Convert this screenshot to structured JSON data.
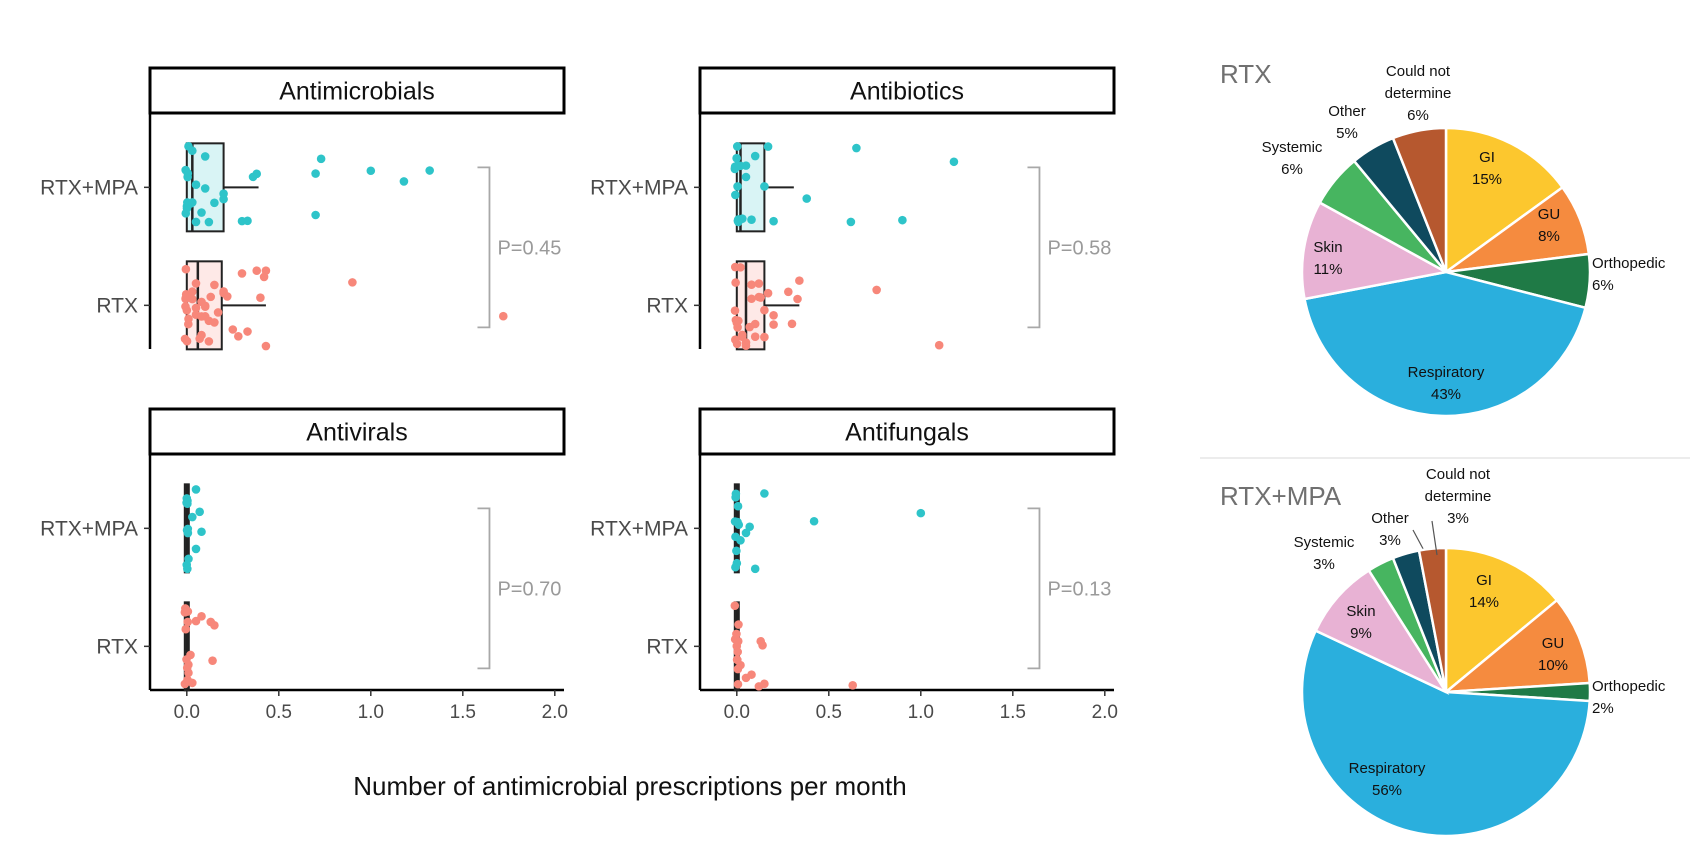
{
  "chart_data": [
    {
      "type": "scatter",
      "subtype": "jittered-boxplot",
      "xlabel": "Number of antimicrobial prescriptions per month",
      "x_ticks": [
        "0.0",
        "0.5",
        "1.0",
        "1.5",
        "2.0"
      ],
      "xlim": [
        -0.2,
        2.05
      ],
      "groups": [
        "RTX+MPA",
        "RTX"
      ],
      "colors": {
        "RTX+MPA": "#2ec4c9",
        "RTX": "#f7877a"
      },
      "panels": [
        {
          "title": "Antimicrobials",
          "p_value": "P=0.45",
          "series": [
            {
              "name": "RTX+MPA",
              "box": {
                "q1": 0.0,
                "median": 0.03,
                "q3": 0.2,
                "whisker_low": 0.0,
                "whisker_high": 0.39
              },
              "points": [
                0,
                0,
                0,
                0,
                0,
                0,
                0,
                0,
                0.02,
                0.03,
                0.03,
                0.05,
                0.05,
                0.08,
                0.1,
                0.1,
                0.12,
                0.15,
                0.2,
                0.2,
                0.3,
                0.33,
                0.36,
                0.38,
                0.7,
                0.7,
                0.73,
                1.0,
                1.18,
                1.32
              ]
            },
            {
              "name": "RTX",
              "box": {
                "q1": 0.0,
                "median": 0.06,
                "q3": 0.19,
                "whisker_low": 0.0,
                "whisker_high": 0.43
              },
              "points": [
                0,
                0,
                0,
                0,
                0,
                0,
                0,
                0,
                0,
                0,
                0.02,
                0.03,
                0.03,
                0.05,
                0.05,
                0.05,
                0.07,
                0.08,
                0.08,
                0.08,
                0.1,
                0.1,
                0.1,
                0.12,
                0.12,
                0.13,
                0.15,
                0.15,
                0.17,
                0.2,
                0.2,
                0.22,
                0.25,
                0.28,
                0.3,
                0.33,
                0.38,
                0.4,
                0.42,
                0.43,
                0.43,
                0.9,
                1.72
              ]
            }
          ]
        },
        {
          "title": "Antibiotics",
          "p_value": "P=0.58",
          "series": [
            {
              "name": "RTX+MPA",
              "box": {
                "q1": 0.0,
                "median": 0.02,
                "q3": 0.15,
                "whisker_low": 0.0,
                "whisker_high": 0.31
              },
              "points": [
                0,
                0,
                0,
                0,
                0,
                0,
                0,
                0,
                0,
                0,
                0.02,
                0.03,
                0.05,
                0.05,
                0.08,
                0.1,
                0.15,
                0.17,
                0.2,
                0.38,
                0.62,
                0.65,
                0.9,
                1.18
              ]
            },
            {
              "name": "RTX",
              "box": {
                "q1": 0.0,
                "median": 0.05,
                "q3": 0.15,
                "whisker_low": 0.0,
                "whisker_high": 0.34
              },
              "points": [
                0,
                0,
                0,
                0,
                0,
                0,
                0,
                0,
                0,
                0.02,
                0.03,
                0.03,
                0.05,
                0.05,
                0.07,
                0.08,
                0.08,
                0.1,
                0.1,
                0.12,
                0.12,
                0.13,
                0.15,
                0.15,
                0.17,
                0.2,
                0.2,
                0.28,
                0.3,
                0.33,
                0.34,
                0.76,
                1.1
              ]
            }
          ]
        },
        {
          "title": "Antivirals",
          "p_value": "P=0.70",
          "series": [
            {
              "name": "RTX+MPA",
              "box": {
                "q1": 0.0,
                "median": 0.0,
                "q3": 0.0,
                "whisker_low": 0.0,
                "whisker_high": 0.0
              },
              "points": [
                0,
                0,
                0,
                0,
                0,
                0,
                0,
                0,
                0,
                0,
                0.03,
                0.05,
                0.05,
                0.07,
                0.08
              ]
            },
            {
              "name": "RTX",
              "box": {
                "q1": 0.0,
                "median": 0.0,
                "q3": 0.0,
                "whisker_low": 0.0,
                "whisker_high": 0.0
              },
              "points": [
                0,
                0,
                0,
                0,
                0,
                0,
                0,
                0,
                0,
                0,
                0,
                0,
                0.02,
                0.03,
                0.05,
                0.08,
                0.13,
                0.14,
                0.15
              ]
            }
          ]
        },
        {
          "title": "Antifungals",
          "p_value": "P=0.13",
          "series": [
            {
              "name": "RTX+MPA",
              "box": {
                "q1": 0.0,
                "median": 0.0,
                "q3": 0.0,
                "whisker_low": 0.0,
                "whisker_high": 0.0
              },
              "points": [
                0,
                0,
                0,
                0,
                0,
                0,
                0,
                0,
                0,
                0,
                0.02,
                0.05,
                0.07,
                0.1,
                0.15,
                0.42,
                1.0
              ]
            },
            {
              "name": "RTX",
              "box": {
                "q1": 0.0,
                "median": 0.0,
                "q3": 0.0,
                "whisker_low": 0.0,
                "whisker_high": 0.0
              },
              "points": [
                0,
                0,
                0,
                0,
                0,
                0,
                0,
                0,
                0,
                0,
                0,
                0.02,
                0.05,
                0.08,
                0.12,
                0.13,
                0.14,
                0.15,
                0.63
              ]
            }
          ]
        }
      ]
    },
    {
      "type": "pie",
      "title": "RTX",
      "slices": [
        {
          "label": "GI",
          "value": 15,
          "text": "15%",
          "color": "#fcc72e"
        },
        {
          "label": "GU",
          "value": 8,
          "text": "8%",
          "color": "#f58b3f"
        },
        {
          "label": "Orthopedic",
          "value": 6,
          "text": "6%",
          "color": "#1f7a46"
        },
        {
          "label": "Respiratory",
          "value": 43,
          "text": "43%",
          "color": "#2aafdd"
        },
        {
          "label": "Skin",
          "value": 11,
          "text": "11%",
          "color": "#e8b2d4"
        },
        {
          "label": "Systemic",
          "value": 6,
          "text": "6%",
          "color": "#47b560"
        },
        {
          "label": "Other",
          "value": 5,
          "text": "5%",
          "color": "#0f4a5e"
        },
        {
          "label": "Could not determine",
          "label_lines": [
            "Could not",
            "determine"
          ],
          "value": 6,
          "text": "6%",
          "color": "#b6582f"
        }
      ]
    },
    {
      "type": "pie",
      "title": "RTX+MPA",
      "slices": [
        {
          "label": "GI",
          "value": 14,
          "text": "14%",
          "color": "#fcc72e"
        },
        {
          "label": "GU",
          "value": 10,
          "text": "10%",
          "color": "#f58b3f"
        },
        {
          "label": "Orthopedic",
          "value": 2,
          "text": "2%",
          "color": "#1f7a46"
        },
        {
          "label": "Respiratory",
          "value": 56,
          "text": "56%",
          "color": "#2aafdd"
        },
        {
          "label": "Skin",
          "value": 9,
          "text": "9%",
          "color": "#e8b2d4"
        },
        {
          "label": "Systemic",
          "value": 3,
          "text": "3%",
          "color": "#47b560"
        },
        {
          "label": "Other",
          "value": 3,
          "text": "3%",
          "color": "#0f4a5e"
        },
        {
          "label": "Could not determine",
          "label_lines": [
            "Could not",
            "determine"
          ],
          "value": 3,
          "text": "3%",
          "color": "#b6582f"
        }
      ]
    }
  ]
}
